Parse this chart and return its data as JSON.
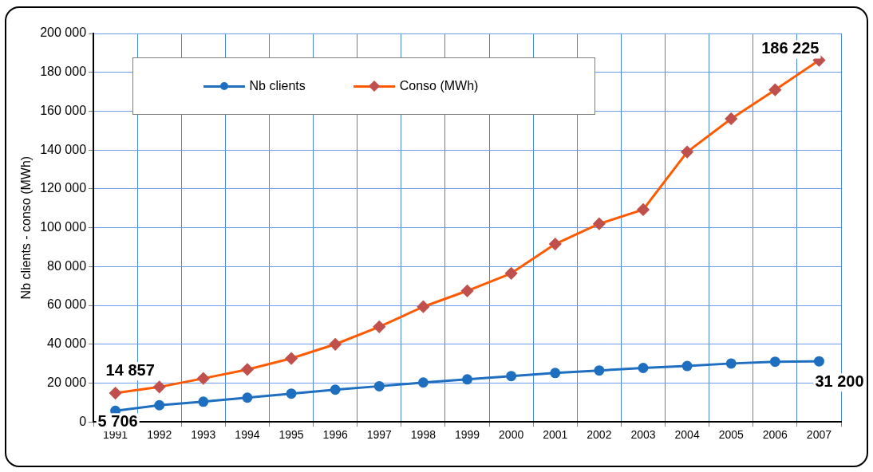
{
  "chart_data": {
    "type": "line",
    "ylabel": "Nb clients - conso (MWh)",
    "categories": [
      "1991",
      "1992",
      "1993",
      "1994",
      "1995",
      "1996",
      "1997",
      "1998",
      "1999",
      "2000",
      "2001",
      "2002",
      "2003",
      "2004",
      "2005",
      "2006",
      "2007"
    ],
    "series": [
      {
        "name": "Nb clients",
        "color": "#1f6fc0",
        "marker": "circle",
        "values": [
          5706,
          8600,
          10400,
          12500,
          14600,
          16600,
          18400,
          20300,
          21900,
          23600,
          25200,
          26500,
          27800,
          28800,
          30100,
          31000,
          31200
        ],
        "value_labels": [
          "5 706",
          null,
          null,
          null,
          null,
          null,
          null,
          null,
          null,
          null,
          null,
          null,
          null,
          null,
          null,
          null,
          "31 200"
        ]
      },
      {
        "name": "Conso (MWh)",
        "color": "#ff5a00",
        "marker": "diamond",
        "colors": [
          "#c0504d",
          "#c0504d",
          "#c0504d",
          "#c0504d",
          "#c0504d",
          "#c0504d",
          "#c0504d",
          "#c0504d",
          "#c0504d",
          "#c0504d",
          "#c0504d",
          "#c0504d",
          "#c0504d",
          "#c0504d",
          "#c0504d",
          "#c0504d",
          "#c0504d"
        ],
        "values": [
          14857,
          18000,
          22400,
          27000,
          32700,
          40000,
          49000,
          59300,
          67500,
          76500,
          91600,
          102000,
          109300,
          139000,
          156100,
          171000,
          186225
        ],
        "value_labels": [
          "14 857",
          null,
          null,
          null,
          null,
          null,
          null,
          null,
          null,
          null,
          null,
          null,
          null,
          null,
          null,
          null,
          "186 225"
        ]
      }
    ],
    "ylim": [
      0,
      200000
    ],
    "yticks": [
      {
        "value": 0,
        "label": "0"
      },
      {
        "value": 20000,
        "label": "20 000"
      },
      {
        "value": 40000,
        "label": "40 000"
      },
      {
        "value": 60000,
        "label": "60 000"
      },
      {
        "value": 80000,
        "label": "80 000"
      },
      {
        "value": 100000,
        "label": "100 000"
      },
      {
        "value": 120000,
        "label": "120 000"
      },
      {
        "value": 140000,
        "label": "140 000"
      },
      {
        "value": 160000,
        "label": "160 000"
      },
      {
        "value": 180000,
        "label": "180 000"
      },
      {
        "value": 200000,
        "label": "200 000"
      }
    ],
    "grid": true,
    "legend": "top",
    "line_style": "solid"
  }
}
